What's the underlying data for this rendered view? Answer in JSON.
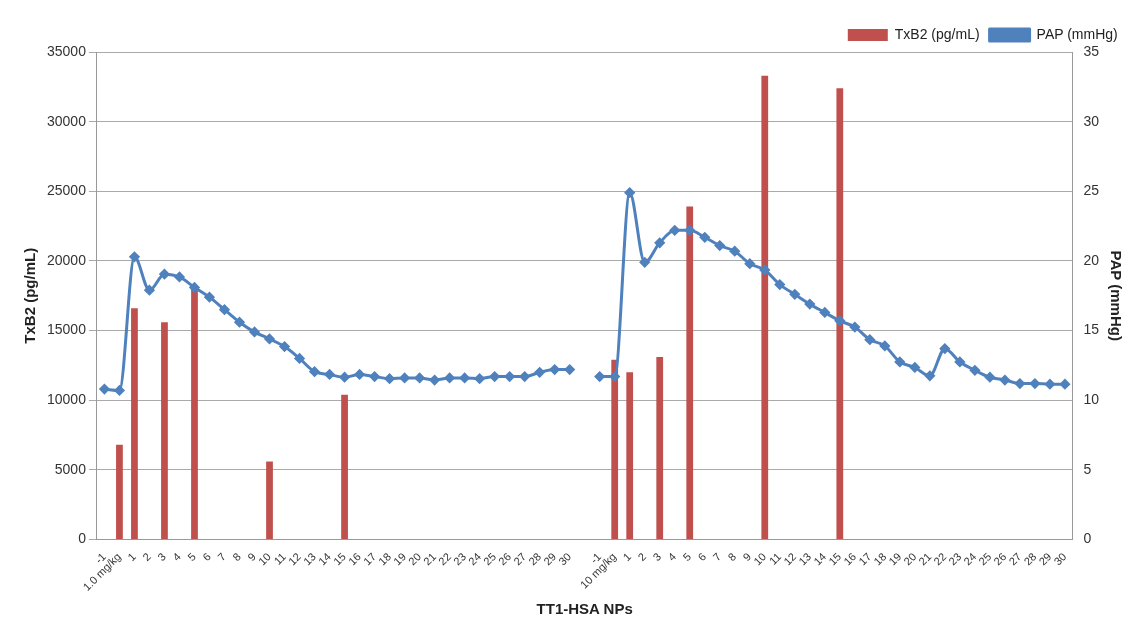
{
  "chart_data": {
    "type": "bar",
    "xlabel": "TT1-HSA NPs",
    "ylabel": "TxB2 (pg/mL)",
    "y2label": "PAP (mmHg)",
    "categories": [
      "-1",
      "1.0 mg/kg",
      "1",
      "2",
      "3",
      "4",
      "5",
      "6",
      "7",
      "8",
      "9",
      "10",
      "11",
      "12",
      "13",
      "14",
      "15",
      "16",
      "17",
      "18",
      "19",
      "20",
      "21",
      "22",
      "23",
      "24",
      "25",
      "26",
      "27",
      "28",
      "29",
      "30",
      null,
      "-1",
      "10 mg/kg",
      "1",
      "2",
      "3",
      "4",
      "5",
      "6",
      "7",
      "8",
      "9",
      "10",
      "11",
      "12",
      "13",
      "14",
      "15",
      "16",
      "17",
      "18",
      "19",
      "20",
      "21",
      "22",
      "23",
      "24",
      "25",
      "26",
      "27",
      "28",
      "29",
      "30"
    ],
    "series": [
      {
        "name": "TxB2 (pg/mL)",
        "color": "#c0504d",
        "values": [
          null,
          6800,
          16600,
          null,
          15600,
          null,
          18100,
          null,
          null,
          null,
          null,
          5600,
          null,
          null,
          null,
          null,
          10400,
          null,
          null,
          null,
          null,
          null,
          null,
          null,
          null,
          null,
          null,
          null,
          null,
          null,
          null,
          null,
          null,
          null,
          12900,
          12000,
          null,
          13100,
          null,
          23900,
          null,
          null,
          null,
          null,
          33300,
          null,
          null,
          null,
          null,
          32400,
          null,
          null,
          null,
          null,
          null,
          null,
          null,
          null,
          null,
          null,
          null,
          null,
          null,
          null,
          null
        ]
      },
      {
        "name": "PAP (mmHg)",
        "type": "line",
        "axis": "y2",
        "color": "#4f81bd",
        "marker": "diamond",
        "values": [
          10.8,
          10.7,
          20.3,
          17.9,
          19.05,
          18.85,
          18.1,
          17.4,
          16.5,
          15.6,
          14.9,
          14.4,
          13.85,
          13.0,
          12.05,
          11.85,
          11.65,
          11.85,
          11.7,
          11.55,
          11.6,
          11.6,
          11.45,
          11.6,
          11.6,
          11.55,
          11.7,
          11.7,
          11.7,
          12.0,
          12.2,
          12.2,
          null,
          11.7,
          11.7,
          24.9,
          19.9,
          21.3,
          22.2,
          22.2,
          21.7,
          21.1,
          20.7,
          19.8,
          19.35,
          18.3,
          17.6,
          16.9,
          16.3,
          15.7,
          15.25,
          14.35,
          13.9,
          12.75,
          12.35,
          11.75,
          13.7,
          12.75,
          12.15,
          11.65,
          11.45,
          11.2,
          11.2,
          11.15,
          11.15
        ]
      }
    ],
    "ylim": [
      0,
      35000
    ],
    "yticks": [
      0,
      5000,
      10000,
      15000,
      20000,
      25000,
      30000,
      35000
    ],
    "y2lim": [
      0,
      35
    ],
    "y2ticks": [
      0,
      5,
      10,
      15,
      20,
      25,
      30,
      35
    ],
    "grid": "y",
    "legend": "top right"
  }
}
